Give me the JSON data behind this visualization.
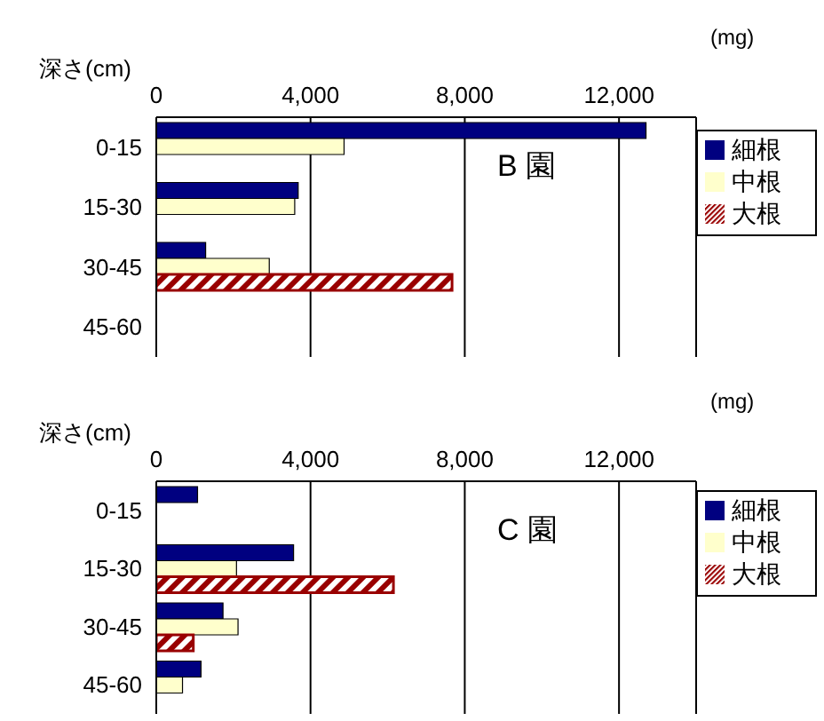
{
  "chart_data": [
    {
      "type": "bar",
      "orientation": "horizontal",
      "xlabel": "(mg)",
      "ylabel": "深さ(cm)",
      "annotations": [
        "B 園"
      ],
      "categories": [
        "0-15",
        "15-30",
        "30-45",
        "45-60"
      ],
      "xlim": [
        0,
        14000
      ],
      "xticks": [
        0,
        {
          "value": 4000,
          "label": "4,000"
        },
        {
          "value": 8000,
          "label": "8,000"
        },
        {
          "value": 12000,
          "label": "12,000"
        }
      ],
      "grid": "x",
      "legend": "right",
      "series": [
        {
          "name": "細根",
          "color": "#000080",
          "values": [
            12700,
            3680,
            1280,
            null
          ]
        },
        {
          "name": "中根",
          "color": "#ffffcc",
          "values": [
            4870,
            3590,
            2930,
            null
          ]
        },
        {
          "name": "大根",
          "color": "#990000",
          "values": [
            null,
            null,
            7670,
            null
          ]
        }
      ]
    },
    {
      "type": "bar",
      "orientation": "horizontal",
      "xlabel": "(mg)",
      "ylabel": "深さ(cm)",
      "annotations": [
        "C 園"
      ],
      "categories": [
        "0-15",
        "15-30",
        "30-45",
        "45-60"
      ],
      "xlim": [
        0,
        14000
      ],
      "xticks": [
        0,
        {
          "value": 4000,
          "label": "4,000"
        },
        {
          "value": 8000,
          "label": "8,000"
        },
        {
          "value": 12000,
          "label": "12,000"
        }
      ],
      "grid": "x",
      "legend": "right",
      "series": [
        {
          "name": "細根",
          "color": "#000080",
          "values": [
            1070,
            3560,
            1730,
            1160
          ]
        },
        {
          "name": "中根",
          "color": "#ffffcc",
          "values": [
            null,
            2080,
            2120,
            680
          ]
        },
        {
          "name": "大根",
          "color": "#990000",
          "values": [
            null,
            6150,
            960,
            null
          ]
        }
      ]
    }
  ]
}
